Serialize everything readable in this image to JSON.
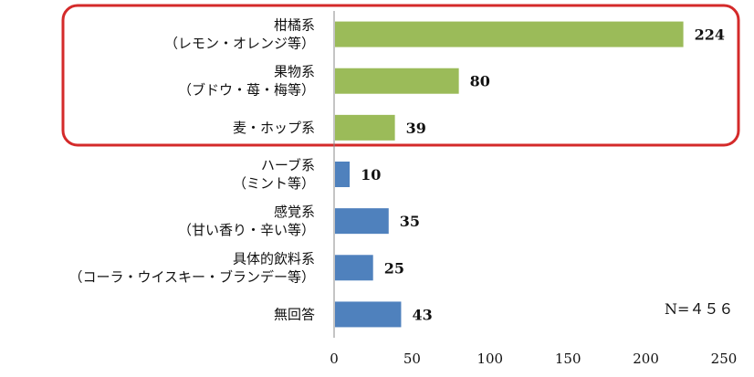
{
  "chart_data": {
    "type": "bar",
    "orientation": "horizontal",
    "categories": [
      [
        "柑橘系",
        "（レモン・オレンジ等）"
      ],
      [
        "果物系",
        "（ブドウ・苺・梅等）"
      ],
      [
        "麦・ホップ系"
      ],
      [
        "ハーブ系",
        "（ミント等）"
      ],
      [
        "感覚系",
        "（甘い香り・辛い等）"
      ],
      [
        "具体的飲料系",
        "（コーラ・ウイスキー・ブランデー等）"
      ],
      [
        "無回答"
      ]
    ],
    "values": [
      224,
      80,
      39,
      10,
      35,
      25,
      43
    ],
    "value_labels": [
      "224",
      "80",
      "39",
      "10",
      "35",
      "25",
      "43"
    ],
    "bar_colors": [
      "#9bbb59",
      "#9bbb59",
      "#9bbb59",
      "#4f81bd",
      "#4f81bd",
      "#4f81bd",
      "#4f81bd"
    ],
    "xlim": [
      0,
      250
    ],
    "xticks": [
      "0",
      "50",
      "100",
      "150",
      "200",
      "250"
    ],
    "grid": false,
    "annotation": "N=４５６",
    "highlight": {
      "categories": [
        "柑橘系",
        "果物系",
        "麦・ホップ系"
      ],
      "color": "#d42a2a"
    }
  }
}
